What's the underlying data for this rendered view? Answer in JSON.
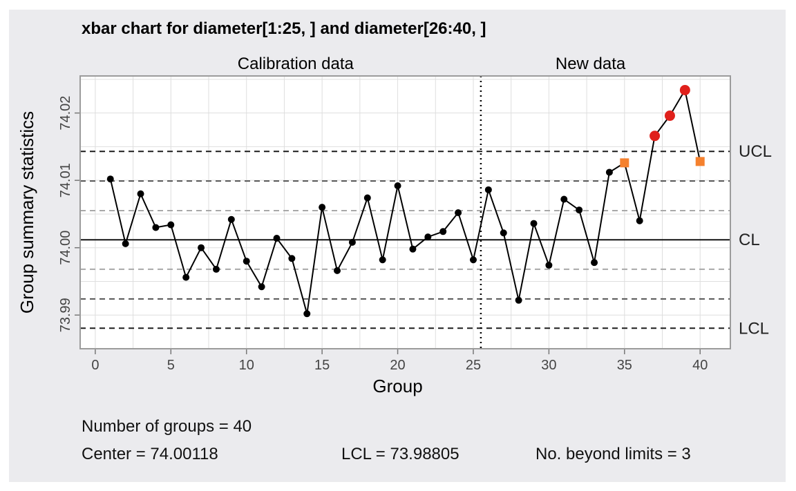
{
  "chart_data": {
    "type": "line",
    "title": "xbar chart for diameter[1:25, ] and diameter[26:40, ]",
    "xlabel": "Group",
    "ylabel": "Group summary statistics",
    "xlim": [
      -1,
      42
    ],
    "ylim": [
      73.985,
      74.0255
    ],
    "xticks": [
      0,
      5,
      10,
      15,
      20,
      25,
      30,
      35,
      40
    ],
    "yticks": [
      73.99,
      74.0,
      74.01,
      74.02
    ],
    "xtick_labels": [
      "0",
      "5",
      "10",
      "15",
      "20",
      "25",
      "30",
      "35",
      "40"
    ],
    "ytick_labels": [
      "73.99",
      "74.00",
      "74.01",
      "74.02"
    ],
    "grid": true,
    "sections": [
      {
        "label": "Calibration data",
        "x_range": [
          1,
          25
        ]
      },
      {
        "label": "New data",
        "x_range": [
          26,
          40
        ]
      }
    ],
    "divider_x": 25.5,
    "limit_lines": [
      {
        "label": "UCL",
        "y": 74.0143,
        "style": "dashed",
        "color": "#1a1a1a"
      },
      {
        "label": "",
        "y": 74.0099,
        "style": "dashed",
        "color": "#555555"
      },
      {
        "label": "",
        "y": 74.0055,
        "style": "dashed",
        "color": "#a8a8a8"
      },
      {
        "label": "CL",
        "y": 74.00118,
        "style": "solid",
        "color": "#111111"
      },
      {
        "label": "",
        "y": 73.9968,
        "style": "dashed",
        "color": "#a8a8a8"
      },
      {
        "label": "",
        "y": 73.9924,
        "style": "dashed",
        "color": "#555555"
      },
      {
        "label": "LCL",
        "y": 73.98805,
        "style": "dashed",
        "color": "#1a1a1a"
      }
    ],
    "series": [
      {
        "x": [
          1,
          2,
          3,
          4,
          5,
          6,
          7,
          8,
          9,
          10,
          11,
          12,
          13,
          14,
          15,
          16,
          17,
          18,
          19,
          20,
          21,
          22,
          23,
          24,
          25,
          26,
          27,
          28,
          29,
          30,
          31,
          32,
          33,
          34,
          35,
          36,
          37,
          38,
          39,
          40
        ],
        "values": [
          74.0102,
          74.0006,
          74.008,
          74.003,
          74.0034,
          73.9956,
          74.0,
          73.9968,
          74.0042,
          73.998,
          73.9942,
          74.0014,
          73.9984,
          73.9902,
          74.006,
          73.9966,
          74.0008,
          74.0074,
          73.9982,
          74.0092,
          73.9998,
          74.0016,
          74.0024,
          74.0052,
          73.9982,
          74.0086,
          74.0022,
          73.9922,
          74.0036,
          73.9974,
          74.0072,
          74.0056,
          73.9978,
          74.0112,
          74.0126,
          74.004,
          74.0166,
          74.0196,
          74.0234,
          74.0128
        ],
        "markers": [
          "point",
          "point",
          "point",
          "point",
          "point",
          "point",
          "point",
          "point",
          "point",
          "point",
          "point",
          "point",
          "point",
          "point",
          "point",
          "point",
          "point",
          "point",
          "point",
          "point",
          "point",
          "point",
          "point",
          "point",
          "point",
          "point",
          "point",
          "point",
          "point",
          "point",
          "point",
          "point",
          "point",
          "point",
          "square",
          "point",
          "circle",
          "circle",
          "circle",
          "square"
        ],
        "marker_colors": {
          "point": "#000000",
          "square": "#f5812e",
          "circle": "#e0201b"
        }
      }
    ]
  },
  "stats": {
    "groups": "Number of groups = 40",
    "center": "Center = 74.00118",
    "lcl": "LCL = 73.98805",
    "beyond": "No. beyond limits = 3"
  }
}
